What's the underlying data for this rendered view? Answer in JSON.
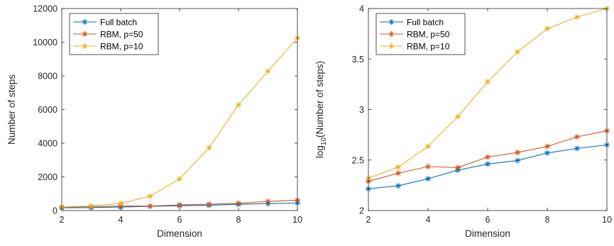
{
  "chart_data": [
    {
      "type": "line",
      "xlabel": "Dimension",
      "ylabel": "Number of steps",
      "xlim": [
        2,
        10
      ],
      "ylim": [
        0,
        12000
      ],
      "xticks": [
        "2",
        "4",
        "6",
        "8",
        "10"
      ],
      "yticks": [
        "0",
        "2000",
        "4000",
        "6000",
        "8000",
        "10000",
        "12000"
      ],
      "grid": false,
      "legend_position": "top-left",
      "x": [
        2,
        3,
        4,
        5,
        6,
        7,
        8,
        9,
        10
      ],
      "series": [
        {
          "name": "Full batch",
          "color": "#0072BD",
          "values": [
            165,
            175,
            207,
            251,
            288,
            312,
            370,
            410,
            447
          ]
        },
        {
          "name": "RBM, p=50",
          "color": "#D95319",
          "values": [
            195,
            232,
            271,
            265,
            335,
            375,
            430,
            540,
            620
          ]
        },
        {
          "name": "RBM, p=10",
          "color": "#EDB120",
          "values": [
            210,
            270,
            430,
            850,
            1880,
            3730,
            6280,
            8280,
            10250
          ]
        }
      ]
    },
    {
      "type": "line",
      "xlabel": "Dimension",
      "ylabel_prefix": "log",
      "ylabel_sub": "10",
      "ylabel_suffix": "(Number of steps)",
      "xlim": [
        2,
        10
      ],
      "ylim": [
        2,
        4
      ],
      "xticks": [
        "2",
        "4",
        "6",
        "8",
        "10"
      ],
      "yticks": [
        "2",
        "2.5",
        "3",
        "3.5",
        "4"
      ],
      "grid": false,
      "legend_position": "top-left",
      "x": [
        2,
        3,
        4,
        5,
        6,
        7,
        8,
        9,
        10
      ],
      "series": [
        {
          "name": "Full batch",
          "color": "#0072BD",
          "values": [
            2.215,
            2.245,
            2.315,
            2.4,
            2.46,
            2.495,
            2.57,
            2.615,
            2.65
          ]
        },
        {
          "name": "RBM, p=50",
          "color": "#D95319",
          "values": [
            2.29,
            2.37,
            2.435,
            2.425,
            2.53,
            2.575,
            2.635,
            2.73,
            2.79
          ]
        },
        {
          "name": "RBM, p=10",
          "color": "#EDB120",
          "values": [
            2.32,
            2.43,
            2.635,
            2.93,
            3.275,
            3.57,
            3.8,
            3.915,
            4.0
          ]
        }
      ]
    }
  ]
}
